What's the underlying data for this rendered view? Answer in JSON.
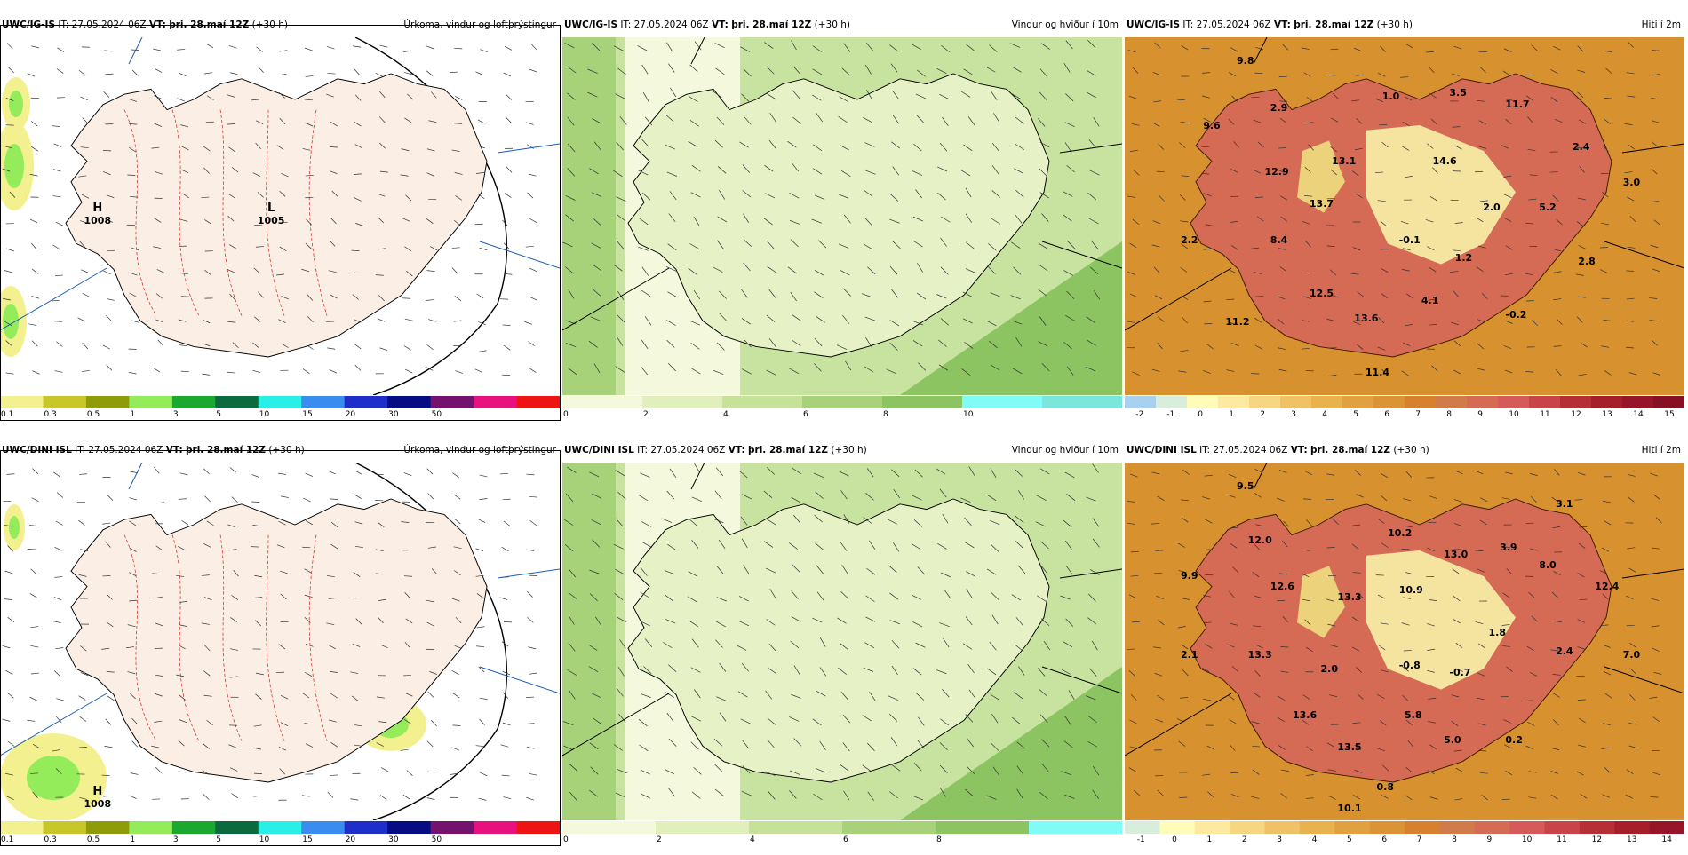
{
  "rows": [
    {
      "panels": [
        {
          "model": "UWC/IG-IS",
          "it_label": "IT:",
          "it_value": "27.05.2024 06Z",
          "vt_label": "VT:",
          "vt_value": "þri. 28.maí 12Z",
          "lead": "(+30 h)",
          "title": "Úrkoma, vindur og loftþrýstingur",
          "kind": "precip",
          "pressure_labels": [
            {
              "h": "H",
              "v": "1008"
            },
            {
              "h": "L",
              "v": "1005"
            }
          ],
          "colorbar": {
            "colors": [
              "#f3f08f",
              "#c9c62a",
              "#8f9c0a",
              "#95ec5a",
              "#1aa82e",
              "#0c6a3f",
              "#2aefe6",
              "#3a8cef",
              "#1d2ec9",
              "#060c84",
              "#75126e",
              "#e8127f",
              "#ef1414"
            ],
            "labels": [
              "0.1",
              "0.3",
              "0.5",
              "1",
              "3",
              "5",
              "10",
              "15",
              "20",
              "30",
              "50"
            ]
          }
        },
        {
          "model": "UWC/IG-IS",
          "it_label": "IT:",
          "it_value": "27.05.2024 06Z",
          "vt_label": "VT:",
          "vt_value": "þri. 28.maí 12Z",
          "lead": "(+30 h)",
          "title": "Vindur og hviður í 10m",
          "kind": "wind",
          "colorbar": {
            "colors": [
              "#f5f9dc",
              "#e1efbd",
              "#c6e29a",
              "#a8d27a",
              "#8cc462",
              "#80fbf5",
              "#7ce5dc"
            ],
            "labels": [
              "0",
              "2",
              "4",
              "6",
              "8",
              "10"
            ]
          }
        },
        {
          "model": "UWC/IG-IS",
          "it_label": "IT:",
          "it_value": "27.05.2024 06Z",
          "vt_label": "VT:",
          "vt_value": "þri. 28.maí 12Z",
          "lead": "(+30 h)",
          "title": "Hiti í 2m",
          "kind": "temp",
          "values": [
            "9.8",
            "2.9",
            "1.0",
            "3.5",
            "11.7",
            "9.6",
            "13.1",
            "14.6",
            "2.4",
            "12.9",
            "3.0",
            "13.7",
            "2.0",
            "5.2",
            "2.2",
            "8.4",
            "-0.1",
            "1.2",
            "2.8",
            "12.5",
            "4.1",
            "-0.2",
            "11.2",
            "13.6",
            "11.4"
          ],
          "colorbar": {
            "colors": [
              "#a8d1f0",
              "#d8eddc",
              "#fffbb8",
              "#fde9a0",
              "#f7d681",
              "#efc266",
              "#e8b24f",
              "#e2a141",
              "#dc9338",
              "#d7812f",
              "#d17a4a",
              "#d56a55",
              "#d65a5a",
              "#c74448",
              "#b52f35",
              "#a51e2a",
              "#961528",
              "#870f24"
            ],
            "labels": [
              "-2",
              "-1",
              "0",
              "1",
              "2",
              "3",
              "4",
              "5",
              "6",
              "7",
              "8",
              "9",
              "10",
              "11",
              "12",
              "13",
              "14",
              "15"
            ]
          }
        }
      ]
    },
    {
      "panels": [
        {
          "model": "UWC/DINI ISL",
          "it_label": "IT:",
          "it_value": "27.05.2024 06Z",
          "vt_label": "VT:",
          "vt_value": "þri. 28.maí 12Z",
          "lead": "(+30 h)",
          "title": "Úrkoma, vindur og loftþrýstingur",
          "kind": "precip",
          "pressure_labels": [
            {
              "h": "H",
              "v": "1008"
            }
          ],
          "colorbar": {
            "colors": [
              "#f3f08f",
              "#c9c62a",
              "#8f9c0a",
              "#95ec5a",
              "#1aa82e",
              "#0c6a3f",
              "#2aefe6",
              "#3a8cef",
              "#1d2ec9",
              "#060c84",
              "#75126e",
              "#e8127f",
              "#ef1414"
            ],
            "labels": [
              "0.1",
              "0.3",
              "0.5",
              "1",
              "3",
              "5",
              "10",
              "15",
              "20",
              "30",
              "50"
            ]
          }
        },
        {
          "model": "UWC/DINI ISL",
          "it_label": "IT:",
          "it_value": "27.05.2024 06Z",
          "vt_label": "VT:",
          "vt_value": "þri. 28.maí 12Z",
          "lead": "(+30 h)",
          "title": "Vindur og hviður í 10m",
          "kind": "wind",
          "colorbar": {
            "colors": [
              "#f5f9dc",
              "#e1efbd",
              "#c6e29a",
              "#a8d27a",
              "#8cc462",
              "#80fbf5"
            ],
            "labels": [
              "0",
              "2",
              "4",
              "6",
              "8"
            ]
          }
        },
        {
          "model": "UWC/DINI ISL",
          "it_label": "IT:",
          "it_value": "27.05.2024 06Z",
          "vt_label": "VT:",
          "vt_value": "þri. 28.maí 12Z",
          "lead": "(+30 h)",
          "title": "Hiti í 2m",
          "kind": "temp",
          "values": [
            "9.5",
            "3.1",
            "12.0",
            "10.2",
            "3.9",
            "13.0",
            "8.0",
            "9.9",
            "12.6",
            "10.9",
            "12.4",
            "13.3",
            "1.8",
            "2.1",
            "13.3",
            "2.0",
            "-0.8",
            "-0.7",
            "2.4",
            "7.0",
            "13.6",
            "5.8",
            "0.2",
            "13.5",
            "5.0",
            "0.8",
            "10.1"
          ],
          "colorbar": {
            "colors": [
              "#d8eddc",
              "#fffbb8",
              "#fde9a0",
              "#f7d681",
              "#efc266",
              "#e8b24f",
              "#e2a141",
              "#dc9338",
              "#d7812f",
              "#d17a4a",
              "#d56a55",
              "#d65a5a",
              "#c74448",
              "#b52f35",
              "#a51e2a",
              "#961528"
            ],
            "labels": [
              "-1",
              "0",
              "1",
              "2",
              "3",
              "4",
              "5",
              "6",
              "7",
              "8",
              "9",
              "10",
              "11",
              "12",
              "13",
              "14"
            ]
          }
        }
      ]
    }
  ]
}
